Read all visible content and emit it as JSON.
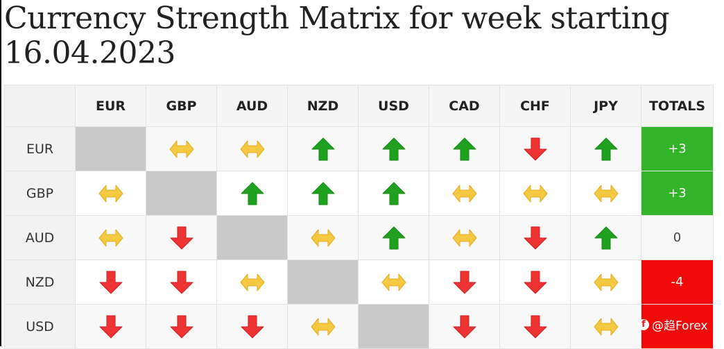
{
  "title": "Currency Strength Matrix for week starting 16.04.2023",
  "colors": {
    "up": "#1fa01f",
    "down": "#ee3333",
    "neutral": "#f5c842",
    "self_cell": "#c9c9c9",
    "total_positive": "#33b429",
    "total_negative": "#f00a0a"
  },
  "icons": {
    "up": "up-arrow-icon",
    "down": "down-arrow-icon",
    "neutral": "left-right-arrow-icon"
  },
  "columns": [
    "EUR",
    "GBP",
    "AUD",
    "NZD",
    "USD",
    "CAD",
    "CHF",
    "JPY"
  ],
  "totals_label": "TOTALS",
  "rows": [
    {
      "currency": "EUR",
      "cells": [
        "self",
        "neutral",
        "neutral",
        "up",
        "up",
        "up",
        "down",
        "up"
      ],
      "total": "+3",
      "total_state": "pos"
    },
    {
      "currency": "GBP",
      "cells": [
        "neutral",
        "self",
        "up",
        "up",
        "up",
        "neutral",
        "neutral",
        "neutral"
      ],
      "total": "+3",
      "total_state": "pos"
    },
    {
      "currency": "AUD",
      "cells": [
        "neutral",
        "down",
        "self",
        "neutral",
        "up",
        "neutral",
        "down",
        "up"
      ],
      "total": "0",
      "total_state": "zero"
    },
    {
      "currency": "NZD",
      "cells": [
        "down",
        "down",
        "neutral",
        "self",
        "neutral",
        "down",
        "down",
        "neutral"
      ],
      "total": "-4",
      "total_state": "neg"
    },
    {
      "currency": "USD",
      "cells": [
        "down",
        "down",
        "down",
        "neutral",
        "self",
        "down",
        "down",
        "neutral"
      ],
      "total": "",
      "total_state": "neg"
    }
  ],
  "watermark": "@趋Forex"
}
